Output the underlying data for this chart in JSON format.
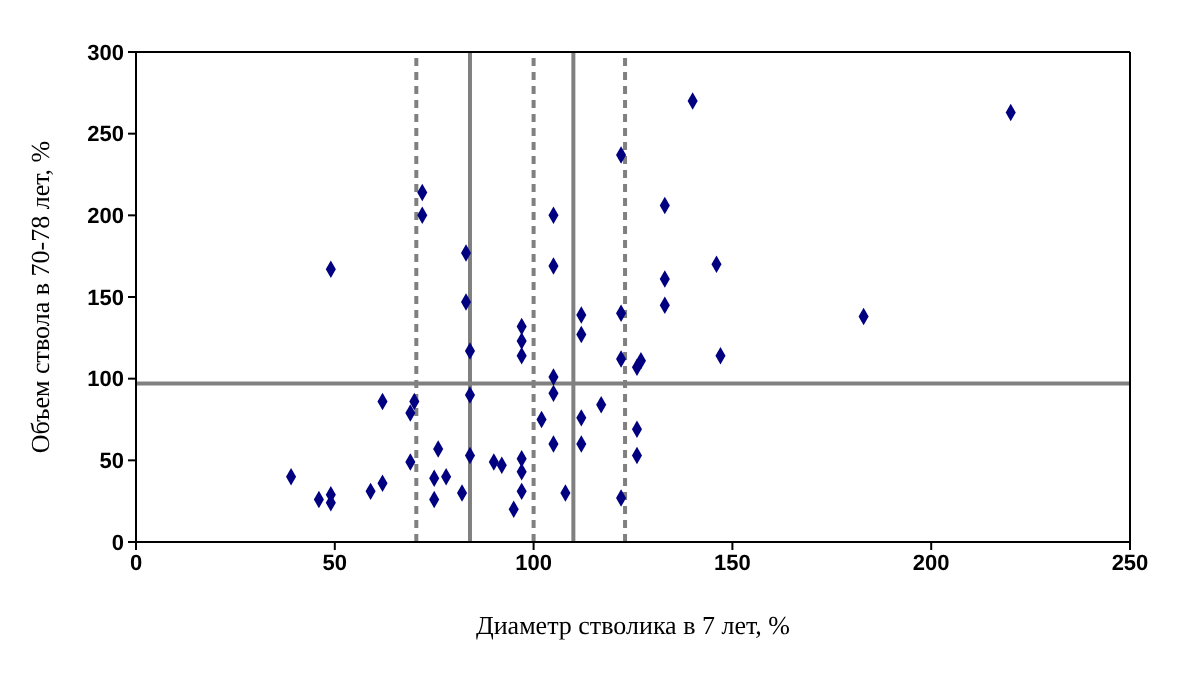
{
  "chart_data": {
    "type": "scatter",
    "xlabel": "Диаметр стволика в 7 лет, %",
    "ylabel": "Объем ствола в 70-78 лет, %",
    "x": [
      39,
      49,
      46,
      49,
      49,
      59,
      62,
      62,
      69,
      70,
      69,
      72,
      72,
      75,
      75,
      76,
      78,
      82,
      83,
      83,
      84,
      84,
      84,
      90,
      92,
      95,
      97,
      97,
      97,
      97,
      97,
      97,
      102,
      105,
      105,
      105,
      105,
      105,
      108,
      112,
      112,
      112,
      112,
      117,
      122,
      122,
      122,
      122,
      126,
      127,
      126,
      126,
      133,
      133,
      133,
      140,
      146,
      147,
      183,
      220
    ],
    "series": [
      {
        "color": "#000080",
        "values": [
          40,
          167,
          26,
          29,
          24,
          31,
          86,
          36,
          79,
          86,
          49,
          214,
          200,
          26,
          39,
          57,
          40,
          30,
          177,
          147,
          117,
          90,
          53,
          49,
          47,
          20,
          132,
          123,
          114,
          51,
          43,
          31,
          75,
          200,
          169,
          101,
          91,
          60,
          30,
          139,
          127,
          76,
          60,
          84,
          237,
          140,
          112,
          27,
          107,
          111,
          69,
          53,
          206,
          161,
          145,
          270,
          170,
          114,
          138,
          263
        ]
      }
    ],
    "marker": "diamond",
    "xlim": [
      0,
      250
    ],
    "xticks": [
      0,
      50,
      100,
      150,
      200,
      250
    ],
    "ylim": [
      0,
      300
    ],
    "yticks": [
      0,
      50,
      100,
      150,
      200,
      250,
      300
    ],
    "ref_lines": [
      {
        "axis": "x",
        "value": 70.5,
        "color": "#808080",
        "line_style": "dashed"
      },
      {
        "axis": "x",
        "value": 84,
        "color": "#808080",
        "line_style": "solid"
      },
      {
        "axis": "x",
        "value": 100,
        "color": "#808080",
        "line_style": "dashed"
      },
      {
        "axis": "x",
        "value": 110,
        "color": "#808080",
        "line_style": "solid"
      },
      {
        "axis": "x",
        "value": 123,
        "color": "#808080",
        "line_style": "dashed"
      },
      {
        "axis": "y",
        "value": 97,
        "color": "#808080",
        "line_style": "solid"
      }
    ]
  }
}
